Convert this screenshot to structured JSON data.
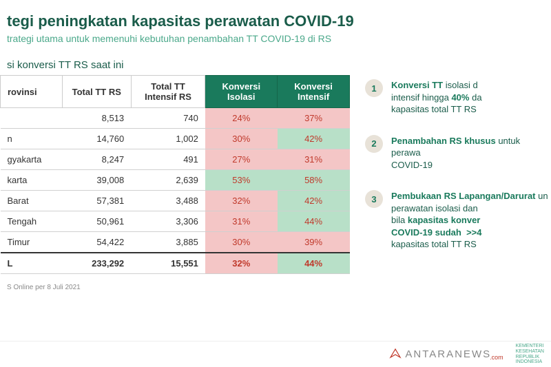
{
  "title": "tegi peningkatan kapasitas perawatan COVID-19",
  "subtitle": "trategi utama untuk memenuhi kebutuhan penambahan TT COVID-19 di RS",
  "section_label": "si konversi TT RS saat ini",
  "table": {
    "headers": {
      "provinsi": "rovinsi",
      "total_tt_rs": "Total TT RS",
      "total_tt_intensif": "Total TT Intensif RS",
      "konversi_isolasi": "Konversi Isolasi",
      "konversi_intensif": "Konversi Intensif"
    },
    "rows": [
      {
        "prov": "",
        "tt": "8,513",
        "intensif": "740",
        "iso": "24%",
        "iso_bg": "pink",
        "kint": "37%",
        "kint_bg": "pink"
      },
      {
        "prov": "n",
        "tt": "14,760",
        "intensif": "1,002",
        "iso": "30%",
        "iso_bg": "pink",
        "kint": "42%",
        "kint_bg": "green"
      },
      {
        "prov": "gyakarta",
        "tt": "8,247",
        "intensif": "491",
        "iso": "27%",
        "iso_bg": "pink",
        "kint": "31%",
        "kint_bg": "pink"
      },
      {
        "prov": "karta",
        "tt": "39,008",
        "intensif": "2,639",
        "iso": "53%",
        "iso_bg": "green",
        "kint": "58%",
        "kint_bg": "green"
      },
      {
        "prov": "Barat",
        "tt": "57,381",
        "intensif": "3,488",
        "iso": "32%",
        "iso_bg": "pink",
        "kint": "42%",
        "kint_bg": "green"
      },
      {
        "prov": "Tengah",
        "tt": "50,961",
        "intensif": "3,306",
        "iso": "31%",
        "iso_bg": "pink",
        "kint": "44%",
        "kint_bg": "green"
      },
      {
        "prov": "Timur",
        "tt": "54,422",
        "intensif": "3,885",
        "iso": "30%",
        "iso_bg": "pink",
        "kint": "39%",
        "kint_bg": "pink"
      }
    ],
    "total": {
      "prov": "L",
      "tt": "233,292",
      "intensif": "15,551",
      "iso": "32%",
      "iso_bg": "pink",
      "kint": "44%",
      "kint_bg": "green"
    }
  },
  "strategies": [
    {
      "num": "1",
      "html": "<span class='hl'>Konversi TT</span> isolasi d<br>intensif hingga <span class='hl'>40%</span> da<br>kapasitas total TT RS"
    },
    {
      "num": "2",
      "html": "<span class='hl'>Penambahan RS khusus</span> untuk perawa<br>COVID-19"
    },
    {
      "num": "3",
      "html": "<span class='hl'>Pembukaan RS Lapangan/Darurat</span> un<br>perawatan isolasi dan<br>bila <span class='hl'>kapasitas konver<br>COVID-19 sudah &nbsp;>>4</span><br>kapasitas total TT RS"
    }
  ],
  "footnote": "S Online per 8 Juli 2021",
  "logos": {
    "antara": "ANTARANEWS",
    "antara_dotcom": ".com",
    "kemkes": "KEMENTERI\nKESEHATAN\nREPUBLIK\nINDONESIA"
  },
  "colors": {
    "title": "#1a5c4a",
    "subtitle": "#4aa88a",
    "header_bg": "#1a7a5c",
    "pink": "#f4c6c6",
    "green": "#b8e0c8",
    "red_text": "#c0392b"
  }
}
